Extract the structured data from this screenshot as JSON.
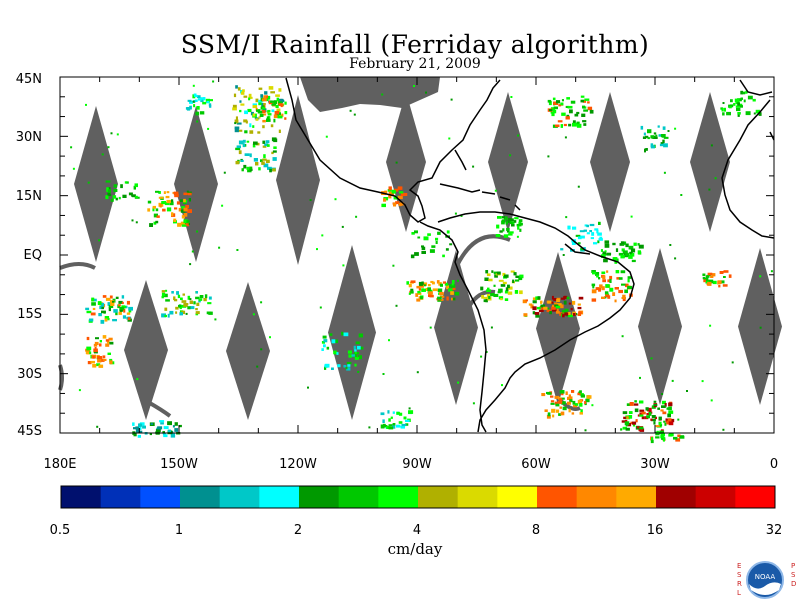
{
  "title": "SSM/I Rainfall (Ferriday algorithm)",
  "subtitle": "February 21, 2009",
  "map": {
    "lat_labels": [
      "45N",
      "30N",
      "15N",
      "EQ",
      "15S",
      "30S",
      "45S"
    ],
    "lon_labels": [
      "180E",
      "150W",
      "120W",
      "90W",
      "60W",
      "30W",
      "0"
    ]
  },
  "colorbar": {
    "unit_label": "cm/day",
    "tick_labels": [
      "0.5",
      "1",
      "2",
      "4",
      "8",
      "16",
      "32"
    ],
    "colors": [
      "#00106e",
      "#0030b8",
      "#0050ff",
      "#009090",
      "#00c8c8",
      "#00ffff",
      "#009900",
      "#00c800",
      "#00ff00",
      "#b0b000",
      "#dada00",
      "#ffff00",
      "#ff5500",
      "#ff8800",
      "#ffaa00",
      "#a00000",
      "#cc0000",
      "#ff0000"
    ]
  },
  "colors": {
    "swath_gap": "#606060",
    "land_outline": "#000000"
  },
  "logo": {
    "agency": "NOAA",
    "left_text": "ESRL",
    "right_text": "PSD"
  }
}
